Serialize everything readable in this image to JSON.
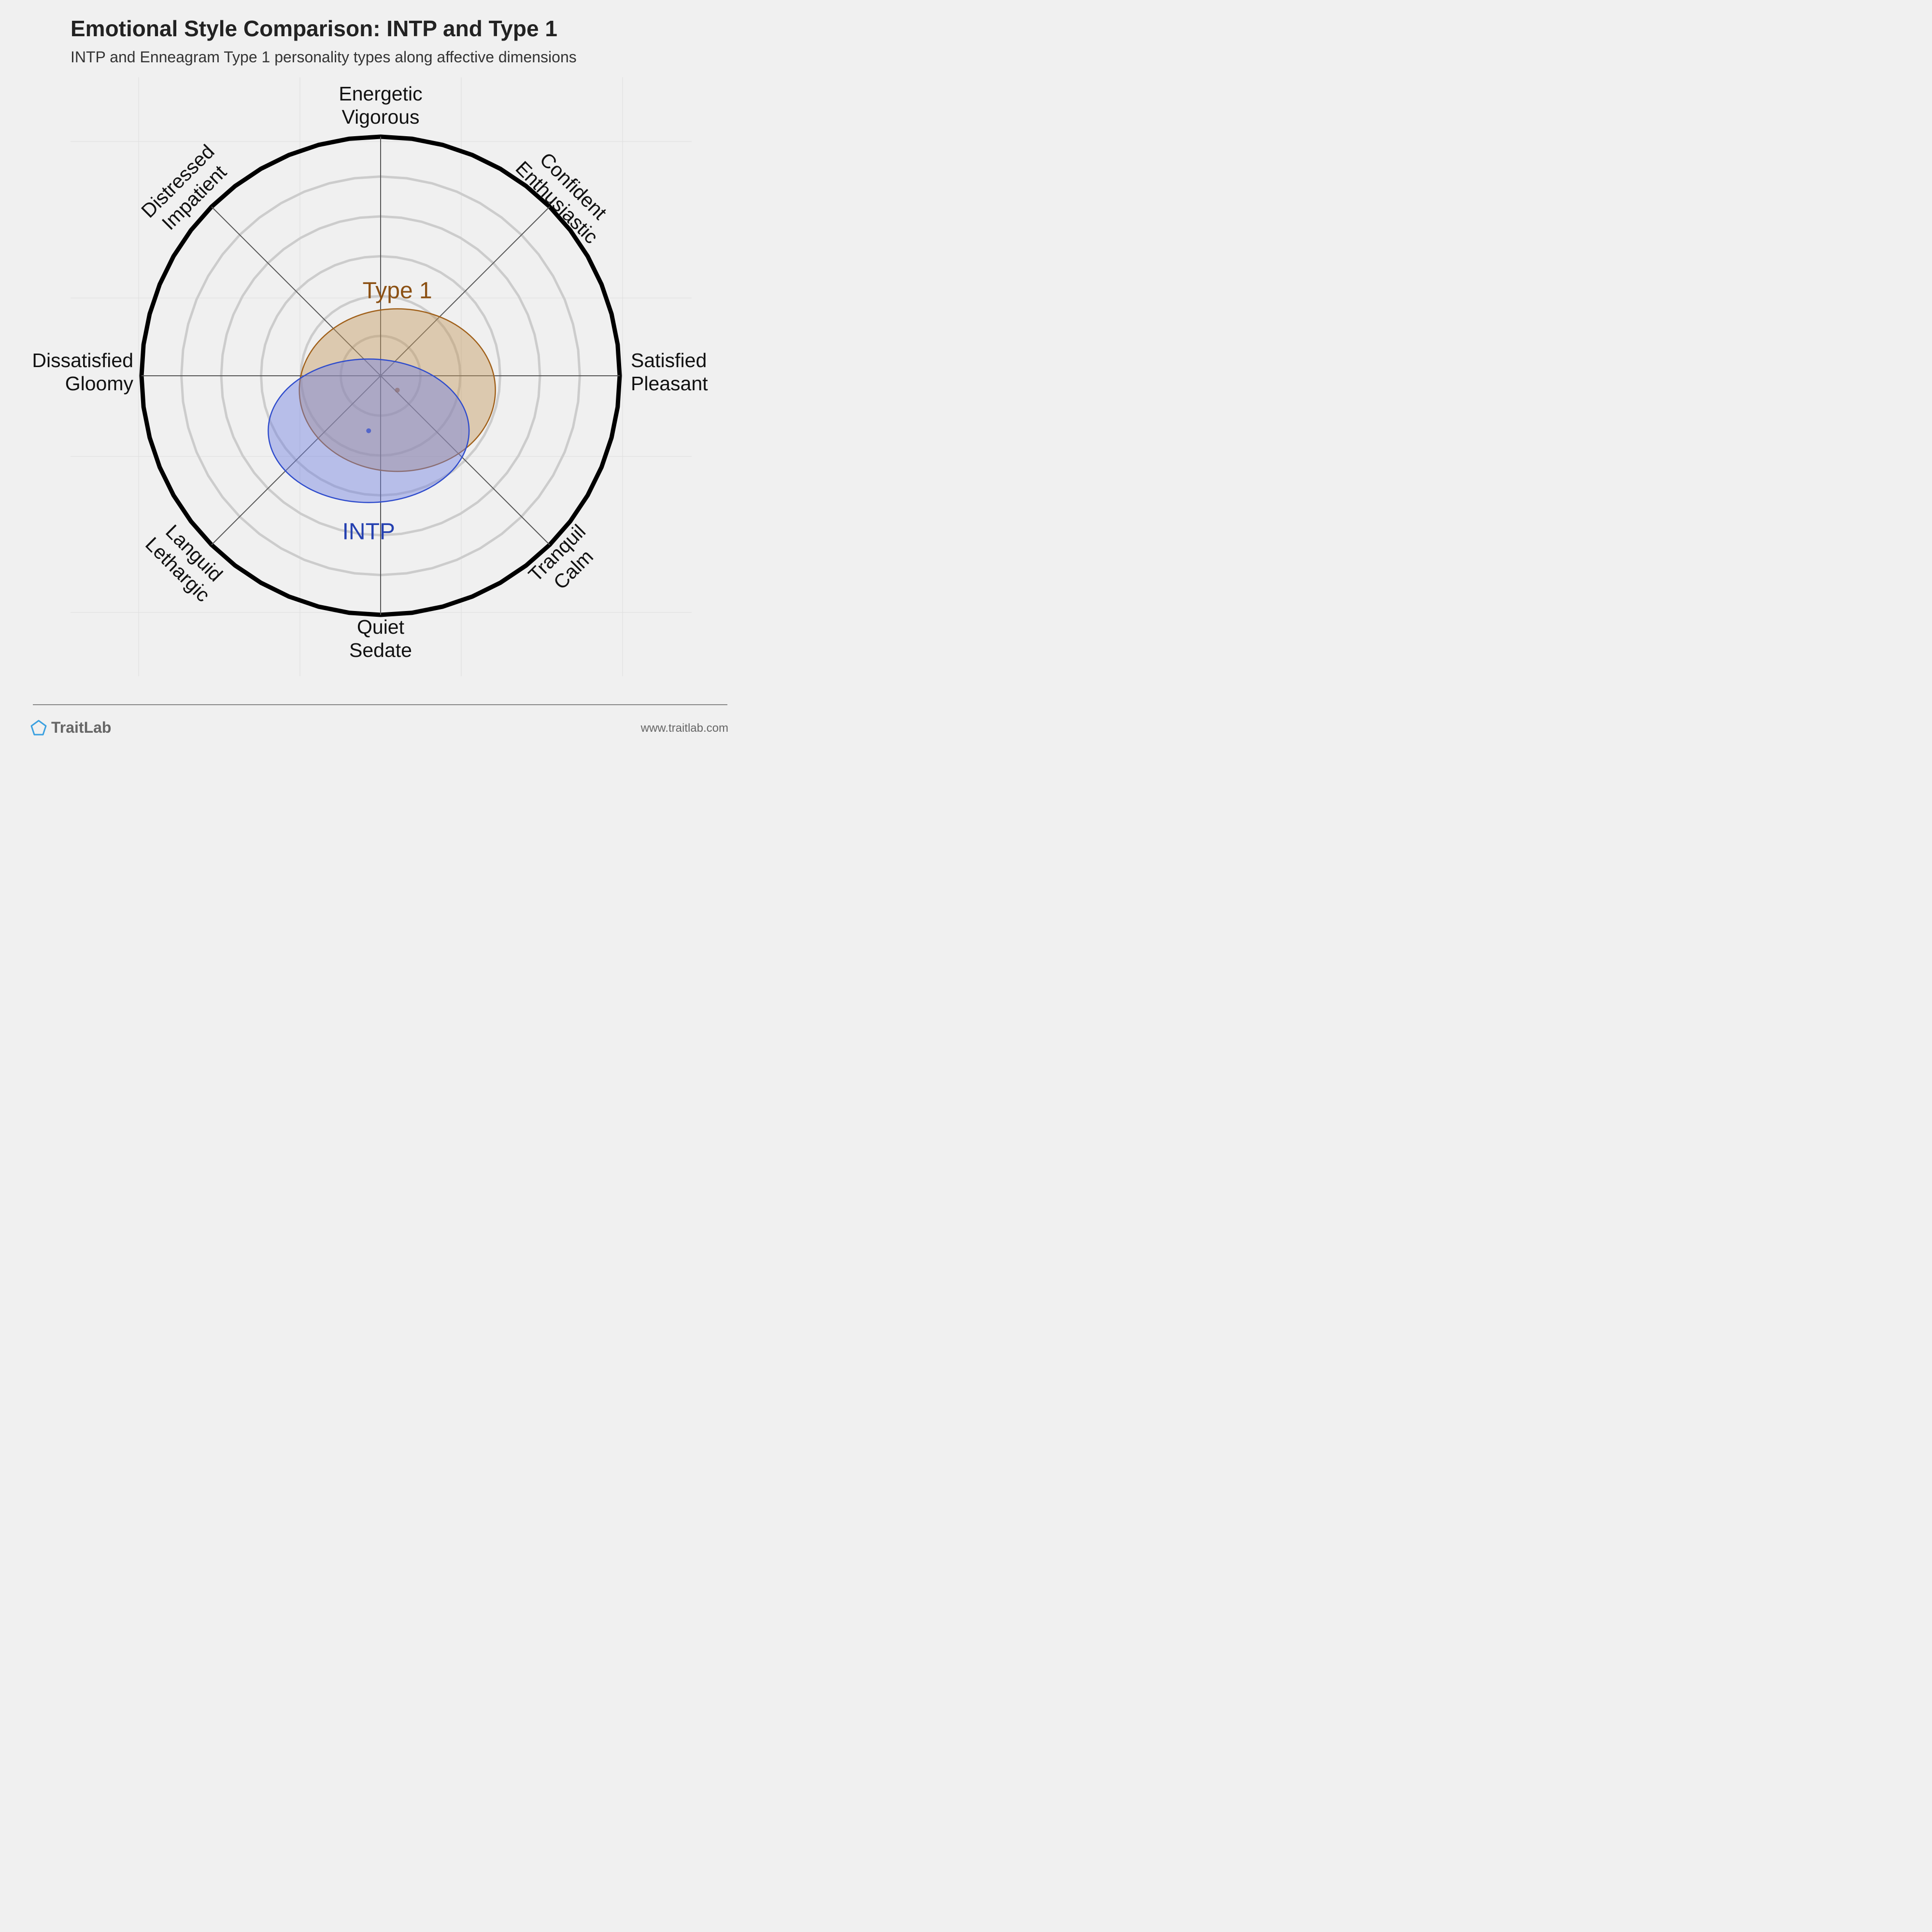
{
  "header": {
    "title": "Emotional Style Comparison: INTP and Type 1",
    "subtitle": "INTP and Enneagram Type 1 personality types along affective dimensions"
  },
  "chart_data": {
    "type": "scatter",
    "title": "Emotional Style Comparison: INTP and Type 1",
    "subtitle": "INTP and Enneagram Type 1 personality types along affective dimensions",
    "axes": [
      {
        "label1": "Energetic",
        "label2": "Vigorous"
      },
      {
        "label1": "Confident",
        "label2": "Enthusiastic"
      },
      {
        "label1": "Satisfied",
        "label2": "Pleasant"
      },
      {
        "label1": "Tranquil",
        "label2": "Calm"
      },
      {
        "label1": "Quiet",
        "label2": "Sedate"
      },
      {
        "label1": "Languid",
        "label2": "Lethargic"
      },
      {
        "label1": "Dissatisfied",
        "label2": "Gloomy"
      },
      {
        "label1": "Distressed",
        "label2": "Impatient"
      }
    ],
    "range": [
      -1,
      1
    ],
    "rings": 6,
    "series": [
      {
        "name": "Type 1",
        "x": 0.07,
        "y": -0.06,
        "spread_x": 0.41,
        "spread_y": 0.34,
        "color": "#a0601a",
        "fill": "#c49a60",
        "label_color": "#8b5013"
      },
      {
        "name": "INTP",
        "x": -0.05,
        "y": -0.23,
        "spread_x": 0.42,
        "spread_y": 0.3,
        "color": "#2f4ccc",
        "fill": "#7080e0",
        "label_color": "#2440b0"
      }
    ]
  },
  "footer": {
    "brand": "TraitLab",
    "url": "www.traitlab.com",
    "brand_color": "#3aa0e0"
  }
}
